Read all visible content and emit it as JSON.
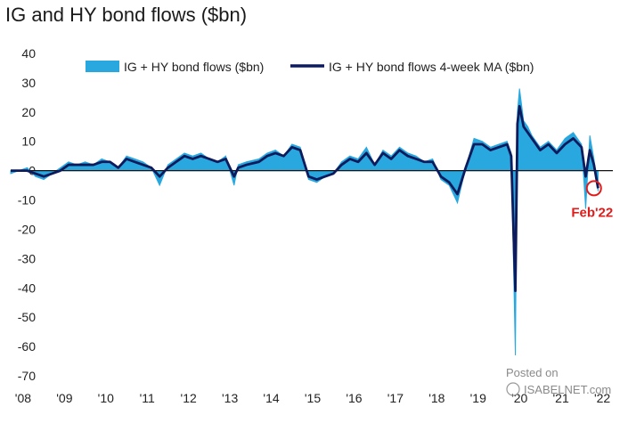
{
  "chart_data": {
    "type": "area",
    "title": "IG and HY bond flows ($bn)",
    "xlabel": "",
    "ylabel": "",
    "ylim": [
      -70,
      40
    ],
    "yticks": [
      40,
      30,
      20,
      10,
      0,
      -10,
      -20,
      -30,
      -40,
      -50,
      -60,
      -70
    ],
    "xlim": [
      2008.0,
      2022.6
    ],
    "xticks": [
      {
        "label": "'08",
        "value": 2008.3
      },
      {
        "label": "'09",
        "value": 2009.3
      },
      {
        "label": "'10",
        "value": 2010.3
      },
      {
        "label": "'11",
        "value": 2011.3
      },
      {
        "label": "'12",
        "value": 2012.3
      },
      {
        "label": "'13",
        "value": 2013.3
      },
      {
        "label": "'14",
        "value": 2014.3
      },
      {
        "label": "'15",
        "value": 2015.3
      },
      {
        "label": "'16",
        "value": 2016.3
      },
      {
        "label": "'17",
        "value": 2017.3
      },
      {
        "label": "'18",
        "value": 2018.3
      },
      {
        "label": "'19",
        "value": 2019.3
      },
      {
        "label": "'20",
        "value": 2020.3
      },
      {
        "label": "'21",
        "value": 2021.3
      },
      {
        "label": "'22",
        "value": 2022.3
      }
    ],
    "legend_position": "top",
    "grid": false,
    "series": [
      {
        "name": "IG + HY bond flows ($bn)",
        "color": "#29a8e0",
        "style": "area",
        "x": [
          2008.0,
          2008.2,
          2008.4,
          2008.6,
          2008.8,
          2009.0,
          2009.2,
          2009.4,
          2009.6,
          2009.8,
          2010.0,
          2010.2,
          2010.4,
          2010.6,
          2010.8,
          2011.0,
          2011.2,
          2011.4,
          2011.6,
          2011.8,
          2012.0,
          2012.2,
          2012.4,
          2012.6,
          2012.8,
          2013.0,
          2013.2,
          2013.4,
          2013.5,
          2013.7,
          2014.0,
          2014.2,
          2014.4,
          2014.6,
          2014.8,
          2015.0,
          2015.2,
          2015.4,
          2015.6,
          2015.8,
          2016.0,
          2016.2,
          2016.4,
          2016.6,
          2016.8,
          2017.0,
          2017.2,
          2017.4,
          2017.6,
          2017.8,
          2018.0,
          2018.2,
          2018.4,
          2018.6,
          2018.8,
          2019.0,
          2019.2,
          2019.4,
          2019.6,
          2019.8,
          2020.0,
          2020.1,
          2020.2,
          2020.25,
          2020.3,
          2020.4,
          2020.5,
          2020.6,
          2020.8,
          2021.0,
          2021.2,
          2021.4,
          2021.6,
          2021.8,
          2021.9,
          2022.0,
          2022.1,
          2022.2
        ],
        "values": [
          -1,
          0,
          1,
          -2,
          -3,
          -1,
          1,
          3,
          2,
          3,
          2,
          4,
          3,
          1,
          5,
          4,
          3,
          1,
          -5,
          2,
          4,
          6,
          5,
          6,
          4,
          3,
          5,
          -5,
          2,
          3,
          4,
          6,
          7,
          5,
          9,
          8,
          -3,
          -4,
          -2,
          -1,
          3,
          5,
          4,
          8,
          2,
          7,
          5,
          8,
          6,
          5,
          3,
          4,
          -3,
          -5,
          -11,
          1,
          11,
          10,
          8,
          9,
          10,
          6,
          -63,
          20,
          28,
          17,
          15,
          12,
          8,
          10,
          7,
          11,
          13,
          9,
          -13,
          12,
          4,
          -7
        ]
      },
      {
        "name": "IG + HY bond flows 4-week MA ($bn)",
        "color": "#0d1a5c",
        "style": "line",
        "x": [
          2008.0,
          2008.2,
          2008.4,
          2008.6,
          2008.8,
          2009.0,
          2009.2,
          2009.4,
          2009.6,
          2009.8,
          2010.0,
          2010.2,
          2010.4,
          2010.6,
          2010.8,
          2011.0,
          2011.2,
          2011.4,
          2011.6,
          2011.8,
          2012.0,
          2012.2,
          2012.4,
          2012.6,
          2012.8,
          2013.0,
          2013.2,
          2013.4,
          2013.5,
          2013.7,
          2014.0,
          2014.2,
          2014.4,
          2014.6,
          2014.8,
          2015.0,
          2015.2,
          2015.4,
          2015.6,
          2015.8,
          2016.0,
          2016.2,
          2016.4,
          2016.6,
          2016.8,
          2017.0,
          2017.2,
          2017.4,
          2017.6,
          2017.8,
          2018.0,
          2018.2,
          2018.4,
          2018.6,
          2018.8,
          2019.0,
          2019.2,
          2019.4,
          2019.6,
          2019.8,
          2020.0,
          2020.1,
          2020.2,
          2020.25,
          2020.3,
          2020.4,
          2020.5,
          2020.6,
          2020.8,
          2021.0,
          2021.2,
          2021.4,
          2021.6,
          2021.8,
          2021.9,
          2022.0,
          2022.1,
          2022.2
        ],
        "values": [
          0,
          0,
          0,
          -1,
          -2,
          -1,
          0,
          2,
          2,
          2,
          2,
          3,
          3,
          1,
          4,
          3,
          2,
          1,
          -2,
          1,
          3,
          5,
          4,
          5,
          4,
          3,
          4,
          -2,
          1,
          2,
          3,
          5,
          6,
          5,
          8,
          7,
          -2,
          -3,
          -2,
          -1,
          2,
          4,
          3,
          6,
          2,
          6,
          4,
          7,
          5,
          4,
          3,
          3,
          -2,
          -4,
          -8,
          1,
          9,
          9,
          7,
          8,
          9,
          5,
          -41,
          16,
          22,
          15,
          13,
          11,
          7,
          9,
          6,
          9,
          11,
          8,
          -2,
          7,
          2,
          -6
        ]
      }
    ],
    "annotations": [
      {
        "text": "Feb'22",
        "x": 2022.1,
        "y": -6,
        "color": "#e01b1b",
        "style": "circle-marker"
      }
    ]
  },
  "watermark": {
    "line1": "Posted on",
    "line2": "ISABELNET.com"
  }
}
